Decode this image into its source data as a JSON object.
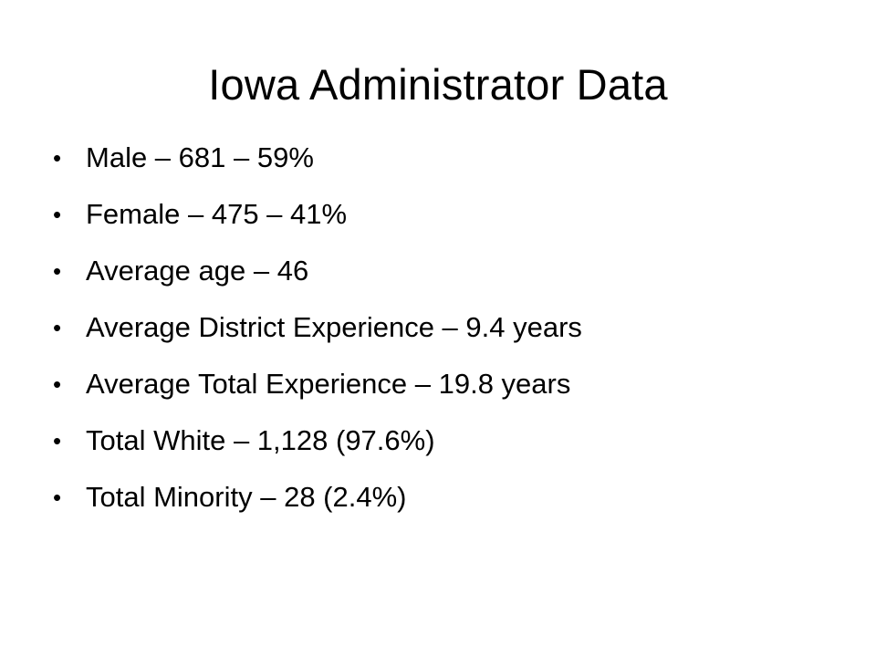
{
  "slide": {
    "title": "Iowa Administrator Data",
    "bullet_glyph": "•",
    "bullets": [
      "Male – 681 – 59%",
      "Female – 475 – 41%",
      "Average age – 46",
      "Average District Experience – 9.4 years",
      "Average Total Experience – 19.8 years",
      "Total White – 1,128 (97.6%)",
      "Total Minority – 28 (2.4%)"
    ]
  }
}
